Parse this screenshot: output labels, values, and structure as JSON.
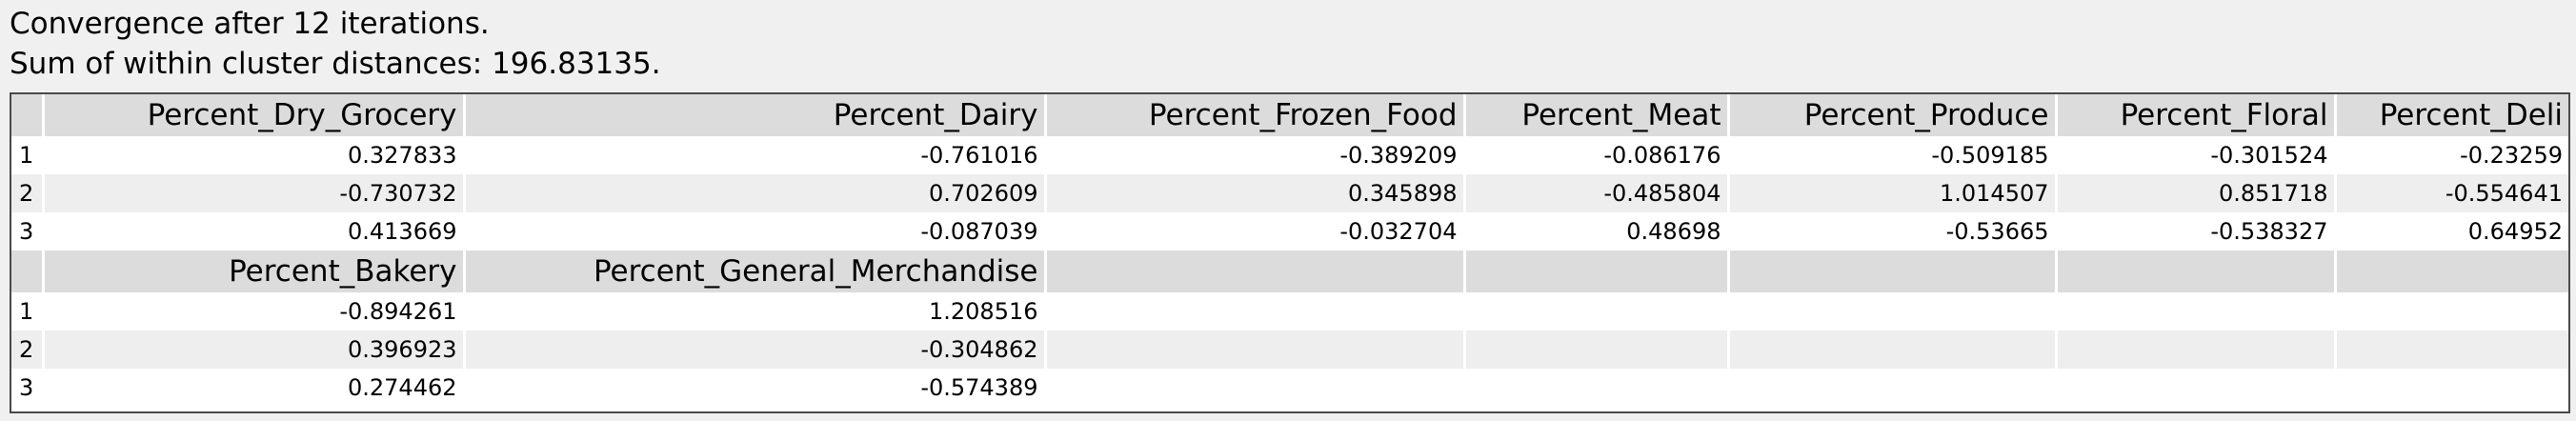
{
  "summary": {
    "convergence": "Convergence after 12 iterations.",
    "distance": "Sum of within cluster distances: 196.83135."
  },
  "block1": {
    "columns": [
      "Percent_Dry_Grocery",
      "Percent_Dairy",
      "Percent_Frozen_Food",
      "Percent_Meat",
      "Percent_Produce",
      "Percent_Floral",
      "Percent_Deli"
    ],
    "rows": [
      {
        "id": "1",
        "values": [
          "0.327833",
          "-0.761016",
          "-0.389209",
          "-0.086176",
          "-0.509185",
          "-0.301524",
          "-0.23259"
        ]
      },
      {
        "id": "2",
        "values": [
          "-0.730732",
          "0.702609",
          "0.345898",
          "-0.485804",
          "1.014507",
          "0.851718",
          "-0.554641"
        ]
      },
      {
        "id": "3",
        "values": [
          "0.413669",
          "-0.087039",
          "-0.032704",
          "0.48698",
          "-0.53665",
          "-0.538327",
          "0.64952"
        ]
      }
    ]
  },
  "block2": {
    "columns": [
      "Percent_Bakery",
      "Percent_General_Merchandise"
    ],
    "rows": [
      {
        "id": "1",
        "values": [
          "-0.894261",
          "1.208516"
        ]
      },
      {
        "id": "2",
        "values": [
          "0.396923",
          "-0.304862"
        ]
      },
      {
        "id": "3",
        "values": [
          "0.274462",
          "-0.574389"
        ]
      }
    ]
  }
}
